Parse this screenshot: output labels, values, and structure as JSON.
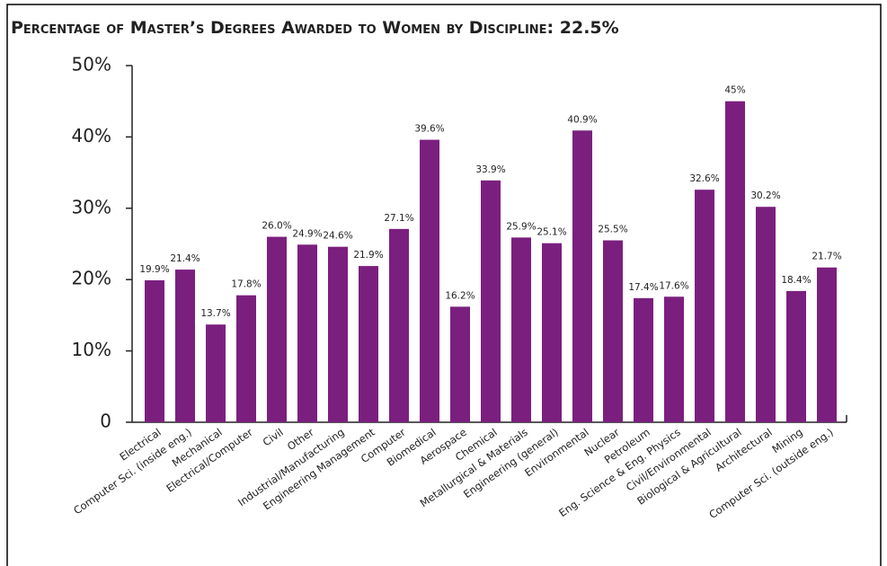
{
  "chart_data": {
    "type": "bar",
    "title": "Percentage of Master’s Degrees Awarded to Women by Discipline: 22.5%",
    "categories": [
      "Electrical",
      "Computer Sci. (inside eng.)",
      "Mechanical",
      "Electrical/Computer",
      "Civil",
      "Other",
      "Industrial/Manufacturing",
      "Engineering Management",
      "Computer",
      "Biomedical",
      "Aerospace",
      "Chemical",
      "Metallurgical & Materials",
      "Engineering (general)",
      "Environmental",
      "Nuclear",
      "Petroleum",
      "Eng. Science & Eng. Physics",
      "Civil/Environmental",
      "Biological & Agricultural",
      "Architectural",
      "Mining",
      "Computer Sci. (outside eng.)"
    ],
    "values": [
      19.9,
      21.4,
      13.7,
      17.8,
      26,
      24.9,
      24.6,
      21.9,
      27.1,
      39.6,
      16.2,
      33.9,
      25.9,
      25.1,
      40.9,
      25.5,
      17.4,
      17.6,
      32.6,
      45,
      30.2,
      18.4,
      21.7
    ],
    "value_labels": [
      "19.9%",
      "21.4%",
      "13.7%",
      "17.8%",
      "26.0%",
      "24.9%",
      "24.6%",
      "21.9%",
      "27.1%",
      "39.6%",
      "16.2%",
      "33.9%",
      "25.9%",
      "25.1%",
      "40.9%",
      "25.5%",
      "17.4%",
      "17.6%",
      "32.6%",
      "45%",
      "30.2%",
      "18.4%",
      "21.7%"
    ],
    "color": "#7b1f7f",
    "ylim": [
      0,
      50
    ],
    "yticks": [
      0,
      {
        "value": 10,
        "label": "10%"
      },
      {
        "value": 20,
        "label": "20%"
      },
      {
        "value": 30,
        "label": "30%"
      },
      {
        "value": 40,
        "label": "40%"
      },
      {
        "value": 50,
        "label": "50%"
      }
    ],
    "grid": false
  }
}
